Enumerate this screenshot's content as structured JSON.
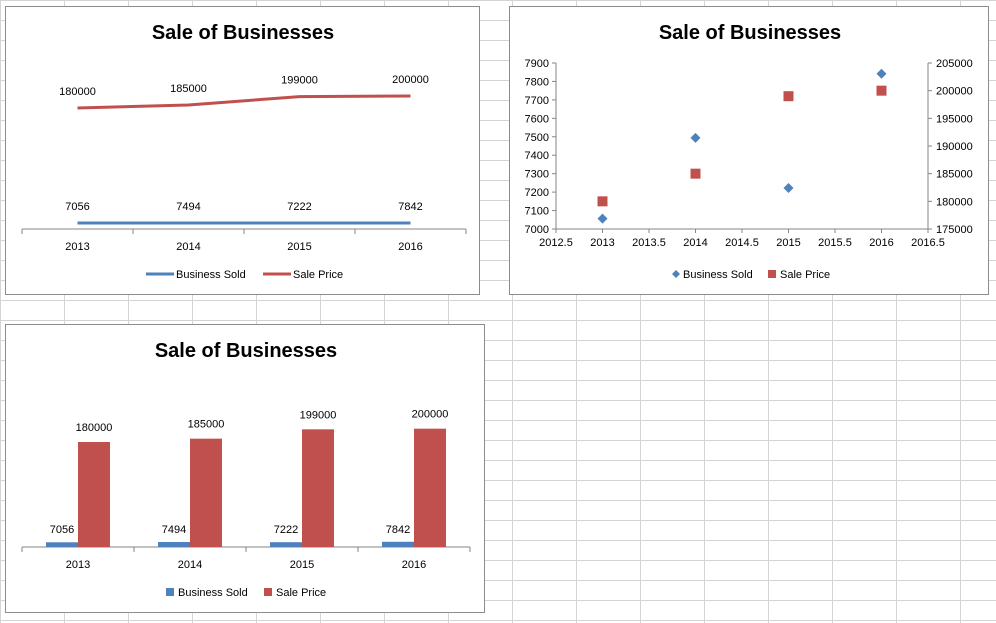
{
  "colors": {
    "business_sold": "#4f81bd",
    "sale_price": "#c0504d",
    "axis": "#868686",
    "gridlines": "#d4d4d4"
  },
  "chart_data": [
    {
      "type": "line",
      "title": "Sale of Businesses",
      "categories": [
        "2013",
        "2014",
        "2015",
        "2016"
      ],
      "series": [
        {
          "name": "Business Sold",
          "values": [
            7056,
            7494,
            7222,
            7842
          ]
        },
        {
          "name": "Sale Price",
          "values": [
            180000,
            185000,
            199000,
            200000
          ]
        }
      ],
      "data_labels": true,
      "legend": "bottom",
      "grid": false
    },
    {
      "type": "scatter",
      "title": "Sale of Businesses",
      "x_ticks": [
        "2012.5",
        "2013",
        "2013.5",
        "2014",
        "2014.5",
        "2015",
        "2015.5",
        "2016",
        "2016.5"
      ],
      "xlim": [
        2012.5,
        2016.5
      ],
      "y_ticks": [
        "7000",
        "7100",
        "7200",
        "7300",
        "7400",
        "7500",
        "7600",
        "7700",
        "7800",
        "7900"
      ],
      "ylim": [
        7000,
        7900
      ],
      "y2_ticks": [
        "175000",
        "180000",
        "185000",
        "190000",
        "195000",
        "200000",
        "205000"
      ],
      "y2lim": [
        175000,
        205000
      ],
      "series": [
        {
          "name": "Business Sold",
          "axis": "primary",
          "marker": "diamond",
          "points": [
            [
              2013,
              7056
            ],
            [
              2014,
              7494
            ],
            [
              2015,
              7222
            ],
            [
              2016,
              7842
            ]
          ]
        },
        {
          "name": "Sale Price",
          "axis": "secondary",
          "marker": "square",
          "points": [
            [
              2013,
              180000
            ],
            [
              2014,
              185000
            ],
            [
              2015,
              199000
            ],
            [
              2016,
              200000
            ]
          ]
        }
      ],
      "legend": "bottom",
      "grid": false
    },
    {
      "type": "bar",
      "title": "Sale of Businesses",
      "categories": [
        "2013",
        "2014",
        "2015",
        "2016"
      ],
      "series": [
        {
          "name": "Business Sold",
          "values": [
            7056,
            7494,
            7222,
            7842
          ]
        },
        {
          "name": "Sale Price",
          "values": [
            180000,
            185000,
            199000,
            200000
          ]
        }
      ],
      "data_labels": true,
      "legend": "bottom",
      "grid": false
    }
  ]
}
